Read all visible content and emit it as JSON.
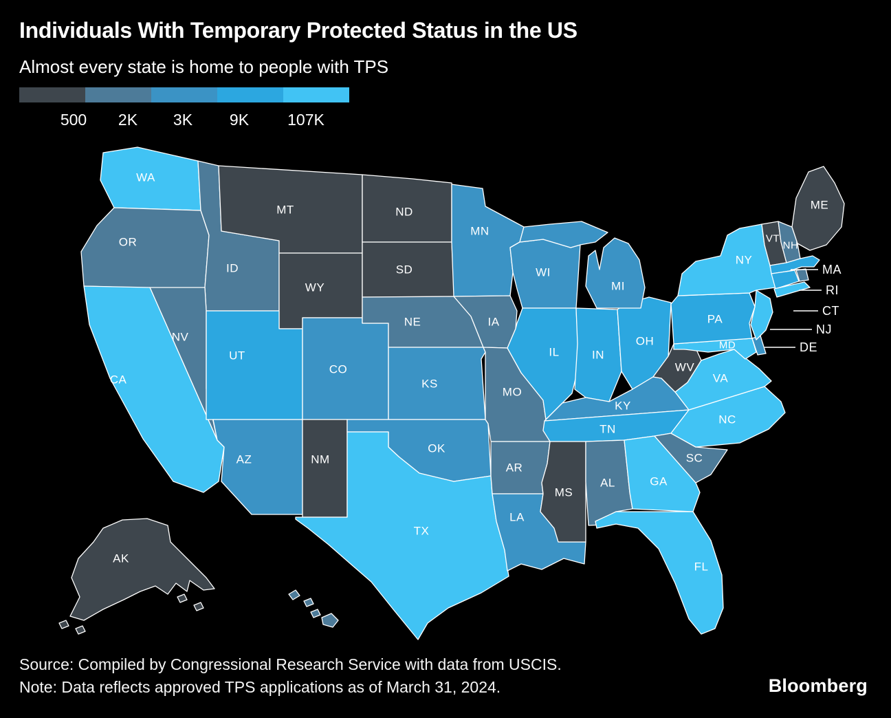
{
  "title": "Individuals With Temporary Protected Status in the US",
  "subtitle": "Almost every state is home to people with TPS",
  "legend": {
    "labels": [
      "500",
      "2K",
      "3K",
      "9K",
      "107K"
    ],
    "colors": [
      "#3e464d",
      "#4d7b99",
      "#3b93c5",
      "#2ca7e0",
      "#41c3f4"
    ]
  },
  "source": "Source: Compiled by Congressional Research Service with data from USCIS.",
  "note": "Note: Data reflects approved TPS applications as of March 31, 2024.",
  "brand": "Bloomberg",
  "chart_data": {
    "type": "choropleth",
    "region": "United States (by state)",
    "measure": "Individuals with Temporary Protected Status (approved TPS applications)",
    "encoding": "color = number of TPS holders per state; legend shows bucket upper bounds",
    "legend_thresholds": [
      "500",
      "2K",
      "3K",
      "9K",
      "107K"
    ],
    "buckets": [
      {
        "tier": 1,
        "range": "up to 500",
        "color": "#3e464d"
      },
      {
        "tier": 2,
        "range": "500–2K",
        "color": "#4d7b99"
      },
      {
        "tier": 3,
        "range": "2K–3K",
        "color": "#3b93c5"
      },
      {
        "tier": 4,
        "range": "3K–9K",
        "color": "#2ca7e0"
      },
      {
        "tier": 5,
        "range": "9K–107K",
        "color": "#41c3f4"
      }
    ],
    "states": [
      {
        "abbr": "AL",
        "tier": 2
      },
      {
        "abbr": "AK",
        "tier": 1
      },
      {
        "abbr": "AZ",
        "tier": 3
      },
      {
        "abbr": "AR",
        "tier": 2
      },
      {
        "abbr": "CA",
        "tier": 5
      },
      {
        "abbr": "CO",
        "tier": 3
      },
      {
        "abbr": "CT",
        "tier": 4
      },
      {
        "abbr": "DE",
        "tier": 3
      },
      {
        "abbr": "FL",
        "tier": 5
      },
      {
        "abbr": "GA",
        "tier": 5
      },
      {
        "abbr": "HI",
        "tier": 2
      },
      {
        "abbr": "ID",
        "tier": 2
      },
      {
        "abbr": "IL",
        "tier": 4
      },
      {
        "abbr": "IN",
        "tier": 4
      },
      {
        "abbr": "IA",
        "tier": 2
      },
      {
        "abbr": "KS",
        "tier": 3
      },
      {
        "abbr": "KY",
        "tier": 3
      },
      {
        "abbr": "LA",
        "tier": 3
      },
      {
        "abbr": "ME",
        "tier": 1
      },
      {
        "abbr": "MD",
        "tier": 5
      },
      {
        "abbr": "MA",
        "tier": 4
      },
      {
        "abbr": "MI",
        "tier": 3
      },
      {
        "abbr": "MN",
        "tier": 3
      },
      {
        "abbr": "MS",
        "tier": 1
      },
      {
        "abbr": "MO",
        "tier": 2
      },
      {
        "abbr": "MT",
        "tier": 1
      },
      {
        "abbr": "NE",
        "tier": 2
      },
      {
        "abbr": "NV",
        "tier": 2
      },
      {
        "abbr": "NH",
        "tier": 2
      },
      {
        "abbr": "NJ",
        "tier": 5
      },
      {
        "abbr": "NM",
        "tier": 1
      },
      {
        "abbr": "NY",
        "tier": 5
      },
      {
        "abbr": "NC",
        "tier": 5
      },
      {
        "abbr": "ND",
        "tier": 1
      },
      {
        "abbr": "OH",
        "tier": 4
      },
      {
        "abbr": "OK",
        "tier": 3
      },
      {
        "abbr": "OR",
        "tier": 2
      },
      {
        "abbr": "PA",
        "tier": 4
      },
      {
        "abbr": "RI",
        "tier": 2
      },
      {
        "abbr": "SC",
        "tier": 2
      },
      {
        "abbr": "SD",
        "tier": 1
      },
      {
        "abbr": "TN",
        "tier": 4
      },
      {
        "abbr": "TX",
        "tier": 5
      },
      {
        "abbr": "UT",
        "tier": 4
      },
      {
        "abbr": "VT",
        "tier": 1
      },
      {
        "abbr": "VA",
        "tier": 5
      },
      {
        "abbr": "WA",
        "tier": 5
      },
      {
        "abbr": "WV",
        "tier": 1
      },
      {
        "abbr": "WI",
        "tier": 3
      },
      {
        "abbr": "WY",
        "tier": 1
      }
    ]
  }
}
